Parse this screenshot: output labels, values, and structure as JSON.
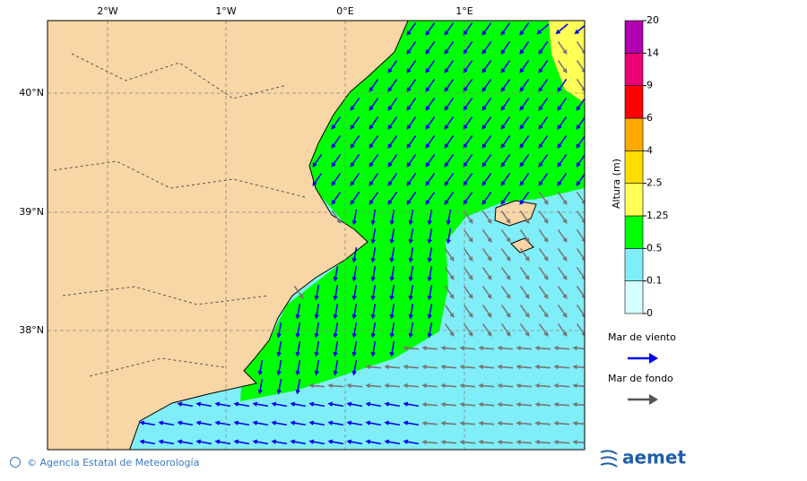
{
  "map": {
    "lon_labels": [
      "2°W",
      "1°W",
      "0°E",
      "1°E"
    ],
    "lat_labels": [
      "40°N",
      "39°N",
      "38°N"
    ]
  },
  "colorbar": {
    "title": "Altura (m)",
    "levels": [
      0,
      0.1,
      0.5,
      1.25,
      2.5,
      4,
      6,
      9,
      14,
      20
    ],
    "colors": [
      "#d4ffff",
      "#80eef8",
      "#00ff00",
      "#ffff55",
      "#ffdd00",
      "#ffaa00",
      "#ff0000",
      "#ee0077",
      "#b000b0"
    ]
  },
  "legend": {
    "items": [
      {
        "label": "Mar de viento",
        "color": "#0000ee"
      },
      {
        "label": "Mar de fondo",
        "color": "#555555"
      }
    ]
  },
  "footer": {
    "credit": "© Agencia Estatal de Meteorología",
    "logo": "aemet"
  }
}
